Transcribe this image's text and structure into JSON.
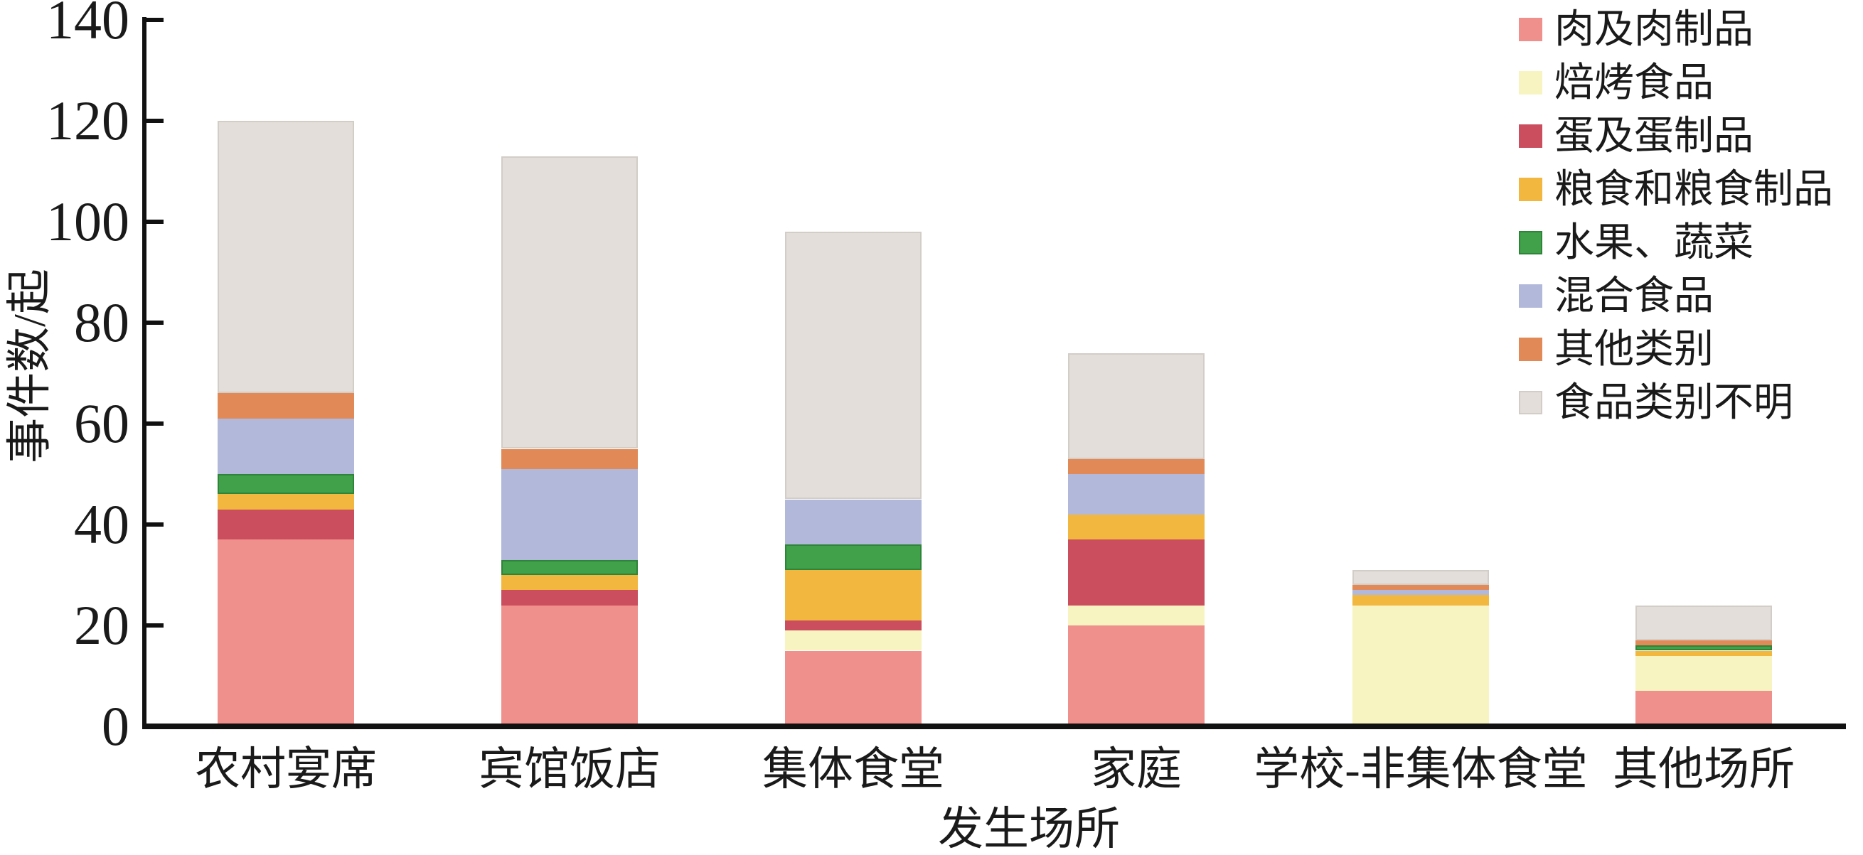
{
  "chart_data": {
    "type": "bar",
    "stacked": true,
    "title": "",
    "xlabel": "发生场所",
    "ylabel": "事件数/起",
    "ylim": [
      0,
      140
    ],
    "yticks": [
      0,
      20,
      40,
      60,
      80,
      100,
      120,
      140
    ],
    "grid": false,
    "legend_position": "top-right",
    "axis_color": "#111111",
    "text_color": "#1a1a1a",
    "background_color": "#ffffff",
    "categories": [
      "农村宴席",
      "宾馆饭店",
      "集体食堂",
      "家庭",
      "学校-非集体食堂",
      "其他场所"
    ],
    "series": [
      {
        "name": "肉及肉制品",
        "color": "#F0908D",
        "edge": null,
        "values": [
          37,
          24,
          15,
          20,
          0,
          7
        ]
      },
      {
        "name": "焙烤食品",
        "color": "#F7F4C1",
        "edge": null,
        "values": [
          0,
          0,
          4,
          4,
          24,
          7
        ]
      },
      {
        "name": "蛋及蛋制品",
        "color": "#CB4E5E",
        "edge": null,
        "values": [
          6,
          3,
          2,
          13,
          0,
          0
        ]
      },
      {
        "name": "粮食和粮食制品",
        "color": "#F1B73E",
        "edge": null,
        "values": [
          3,
          3,
          10,
          5,
          2,
          1
        ]
      },
      {
        "name": "水果、蔬菜",
        "color": "#41A14B",
        "edge": "#2E8438",
        "values": [
          4,
          3,
          5,
          0,
          0,
          1
        ]
      },
      {
        "name": "混合食品",
        "color": "#B2B8DA",
        "edge": null,
        "values": [
          11,
          18,
          9,
          8,
          1,
          0
        ]
      },
      {
        "name": "其他类别",
        "color": "#E18A58",
        "edge": null,
        "values": [
          5,
          4,
          0,
          3,
          1,
          1
        ]
      },
      {
        "name": "食品类别不明",
        "color": "#E4DEDA",
        "edge": "#D3CDC8",
        "values": [
          54,
          58,
          53,
          21,
          3,
          7
        ]
      }
    ],
    "totals": [
      120,
      113,
      98,
      74,
      31,
      24
    ]
  }
}
